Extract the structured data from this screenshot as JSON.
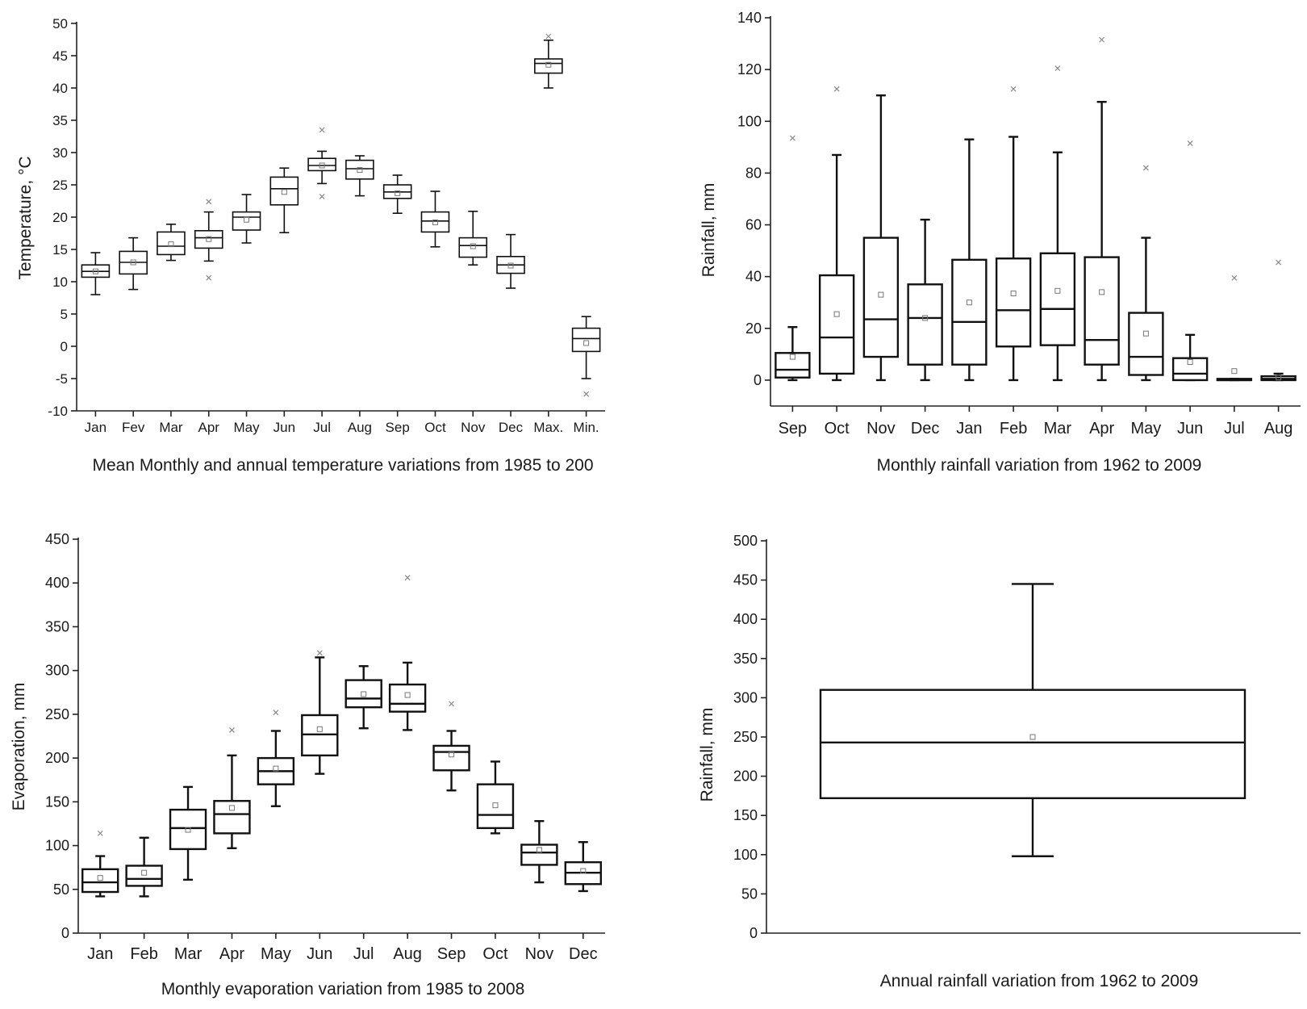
{
  "colors": {
    "stroke": "#111111",
    "mean_marker": "#777777",
    "outlier": "#888888"
  },
  "chart_data": [
    {
      "id": "temperature",
      "type": "box",
      "title": "",
      "caption": "Mean Monthly and annual temperature variations from 1985 to 200",
      "xlabel": "",
      "ylabel": "Temperature, °C",
      "ylim": [
        -10,
        50
      ],
      "yticks": [
        -10,
        -5,
        0,
        5,
        10,
        15,
        20,
        25,
        30,
        35,
        40,
        45,
        50
      ],
      "categories": [
        "Jan",
        "Fev",
        "Mar",
        "Apr",
        "May",
        "Jun",
        "Jul",
        "Aug",
        "Sep",
        "Oct",
        "Nov",
        "Dec",
        "Max.",
        "Min."
      ],
      "boxes": [
        {
          "whisker_low": 8,
          "q1": 10.7,
          "median": 11.6,
          "q3": 12.6,
          "whisker_high": 14.5,
          "mean": 11.6,
          "outliers": []
        },
        {
          "whisker_low": 8.8,
          "q1": 11.2,
          "median": 13,
          "q3": 14.7,
          "whisker_high": 16.8,
          "mean": 13,
          "outliers": []
        },
        {
          "whisker_low": 13.3,
          "q1": 14.2,
          "median": 15.5,
          "q3": 17.7,
          "whisker_high": 18.9,
          "mean": 15.8,
          "outliers": []
        },
        {
          "whisker_low": 13.2,
          "q1": 15.2,
          "median": 16.8,
          "q3": 17.9,
          "whisker_high": 20.8,
          "mean": 16.6,
          "outliers": [
            22.4,
            10.6
          ]
        },
        {
          "whisker_low": 16,
          "q1": 18,
          "median": 20,
          "q3": 20.8,
          "whisker_high": 23.5,
          "mean": 19.6,
          "outliers": []
        },
        {
          "whisker_low": 17.6,
          "q1": 21.9,
          "median": 24.4,
          "q3": 26.2,
          "whisker_high": 27.6,
          "mean": 23.9,
          "outliers": []
        },
        {
          "whisker_low": 25.2,
          "q1": 27.2,
          "median": 28,
          "q3": 29.1,
          "whisker_high": 30.2,
          "mean": 28,
          "outliers": [
            33.5,
            23.2
          ]
        },
        {
          "whisker_low": 23.3,
          "q1": 25.9,
          "median": 27.5,
          "q3": 28.8,
          "whisker_high": 29.5,
          "mean": 27.3,
          "outliers": []
        },
        {
          "whisker_low": 20.6,
          "q1": 22.9,
          "median": 23.9,
          "q3": 25,
          "whisker_high": 26.5,
          "mean": 23.7,
          "outliers": []
        },
        {
          "whisker_low": 15.4,
          "q1": 17.7,
          "median": 19.4,
          "q3": 20.8,
          "whisker_high": 24,
          "mean": 19.2,
          "outliers": []
        },
        {
          "whisker_low": 12.6,
          "q1": 13.8,
          "median": 15.6,
          "q3": 16.8,
          "whisker_high": 20.9,
          "mean": 15.5,
          "outliers": []
        },
        {
          "whisker_low": 9,
          "q1": 11.3,
          "median": 12.6,
          "q3": 13.9,
          "whisker_high": 17.3,
          "mean": 12.5,
          "outliers": []
        },
        {
          "whisker_low": 40,
          "q1": 42.3,
          "median": 43.8,
          "q3": 44.5,
          "whisker_high": 47.4,
          "mean": 43.6,
          "outliers": [
            48
          ]
        },
        {
          "whisker_low": -5,
          "q1": -0.8,
          "median": 1.2,
          "q3": 2.8,
          "whisker_high": 4.6,
          "mean": 0.5,
          "outliers": [
            -7.4
          ]
        }
      ]
    },
    {
      "id": "monthly-rainfall",
      "type": "box",
      "title": "",
      "caption": "Monthly rainfall variation from 1962 to 2009",
      "xlabel": "",
      "ylabel": "Rainfall, mm",
      "ylim": [
        -10,
        140
      ],
      "yticks": [
        0,
        20,
        40,
        60,
        80,
        100,
        120,
        140
      ],
      "categories": [
        "Sep",
        "Oct",
        "Nov",
        "Dec",
        "Jan",
        "Feb",
        "Mar",
        "Apr",
        "May",
        "Jun",
        "Jul",
        "Aug"
      ],
      "boxes": [
        {
          "whisker_low": 0,
          "q1": 1,
          "median": 4,
          "q3": 10.5,
          "whisker_high": 20.5,
          "mean": 9,
          "outliers": [
            93.5
          ]
        },
        {
          "whisker_low": 0,
          "q1": 2.5,
          "median": 16.5,
          "q3": 40.5,
          "whisker_high": 87,
          "mean": 25.5,
          "outliers": [
            112.5
          ]
        },
        {
          "whisker_low": 0,
          "q1": 9,
          "median": 23.5,
          "q3": 55,
          "whisker_high": 110,
          "mean": 33,
          "outliers": []
        },
        {
          "whisker_low": 0,
          "q1": 6,
          "median": 24,
          "q3": 37,
          "whisker_high": 62,
          "mean": 24,
          "outliers": []
        },
        {
          "whisker_low": 0,
          "q1": 6,
          "median": 22.5,
          "q3": 46.5,
          "whisker_high": 93,
          "mean": 30,
          "outliers": []
        },
        {
          "whisker_low": 0,
          "q1": 13,
          "median": 27,
          "q3": 47,
          "whisker_high": 94,
          "mean": 33.5,
          "outliers": [
            112.5
          ]
        },
        {
          "whisker_low": 0,
          "q1": 13.5,
          "median": 27.5,
          "q3": 49,
          "whisker_high": 88,
          "mean": 34.5,
          "outliers": [
            120.5
          ]
        },
        {
          "whisker_low": 0,
          "q1": 6,
          "median": 15.5,
          "q3": 47.5,
          "whisker_high": 107.5,
          "mean": 34,
          "outliers": [
            131.5
          ]
        },
        {
          "whisker_low": 0,
          "q1": 2,
          "median": 9,
          "q3": 26,
          "whisker_high": 55,
          "mean": 18,
          "outliers": [
            82
          ]
        },
        {
          "whisker_low": 0,
          "q1": 0,
          "median": 2.5,
          "q3": 8.5,
          "whisker_high": 17.5,
          "mean": 7,
          "outliers": [
            91.5
          ]
        },
        {
          "whisker_low": 0,
          "q1": 0,
          "median": 0,
          "q3": 0.5,
          "whisker_high": 0.5,
          "mean": 3.5,
          "outliers": [
            39.5
          ]
        },
        {
          "whisker_low": 0,
          "q1": 0,
          "median": 0.5,
          "q3": 1.5,
          "whisker_high": 2.5,
          "mean": 1,
          "outliers": [
            45.5
          ]
        }
      ]
    },
    {
      "id": "evaporation",
      "type": "box",
      "title": "",
      "caption": "Monthly evaporation variation from 1985 to 2008",
      "xlabel": "",
      "ylabel": "Evaporation, mm",
      "ylim": [
        0,
        450
      ],
      "yticks": [
        0,
        50,
        100,
        150,
        200,
        250,
        300,
        350,
        400,
        450
      ],
      "categories": [
        "Jan",
        "Feb",
        "Mar",
        "Apr",
        "May",
        "Jun",
        "Jul",
        "Aug",
        "Sep",
        "Oct",
        "Nov",
        "Dec"
      ],
      "boxes": [
        {
          "whisker_low": 42,
          "q1": 47,
          "median": 58,
          "q3": 73,
          "whisker_high": 88,
          "mean": 63,
          "outliers": [
            114
          ]
        },
        {
          "whisker_low": 42,
          "q1": 54,
          "median": 62,
          "q3": 77,
          "whisker_high": 109,
          "mean": 69,
          "outliers": []
        },
        {
          "whisker_low": 61,
          "q1": 96,
          "median": 120,
          "q3": 141,
          "whisker_high": 167,
          "mean": 118,
          "outliers": []
        },
        {
          "whisker_low": 97,
          "q1": 114,
          "median": 136,
          "q3": 151,
          "whisker_high": 203,
          "mean": 143,
          "outliers": [
            232
          ]
        },
        {
          "whisker_low": 145,
          "q1": 170,
          "median": 185,
          "q3": 200,
          "whisker_high": 231,
          "mean": 188,
          "outliers": [
            252
          ]
        },
        {
          "whisker_low": 182,
          "q1": 203,
          "median": 227,
          "q3": 249,
          "whisker_high": 315,
          "mean": 233,
          "outliers": [
            320
          ]
        },
        {
          "whisker_low": 234,
          "q1": 258,
          "median": 268,
          "q3": 289,
          "whisker_high": 305,
          "mean": 273,
          "outliers": []
        },
        {
          "whisker_low": 232,
          "q1": 253,
          "median": 262,
          "q3": 284,
          "whisker_high": 309,
          "mean": 272,
          "outliers": [
            406
          ]
        },
        {
          "whisker_low": 163,
          "q1": 186,
          "median": 207,
          "q3": 214,
          "whisker_high": 231,
          "mean": 204,
          "outliers": [
            262
          ]
        },
        {
          "whisker_low": 114,
          "q1": 120,
          "median": 135,
          "q3": 170,
          "whisker_high": 196,
          "mean": 146,
          "outliers": []
        },
        {
          "whisker_low": 58,
          "q1": 78,
          "median": 92,
          "q3": 101,
          "whisker_high": 128,
          "mean": 95,
          "outliers": []
        },
        {
          "whisker_low": 48,
          "q1": 56,
          "median": 69,
          "q3": 81,
          "whisker_high": 104,
          "mean": 71,
          "outliers": []
        }
      ]
    },
    {
      "id": "annual-rainfall",
      "type": "box",
      "title": "",
      "caption": "Annual rainfall variation from 1962 to 2009",
      "xlabel": "",
      "ylabel": "Rainfall, mm",
      "ylim": [
        0,
        500
      ],
      "yticks": [
        0,
        50,
        100,
        150,
        200,
        250,
        300,
        350,
        400,
        450,
        500
      ],
      "categories": [
        ""
      ],
      "boxes": [
        {
          "whisker_low": 98,
          "q1": 172,
          "median": 243,
          "q3": 310,
          "whisker_high": 445,
          "mean": 250,
          "outliers": []
        }
      ]
    }
  ]
}
